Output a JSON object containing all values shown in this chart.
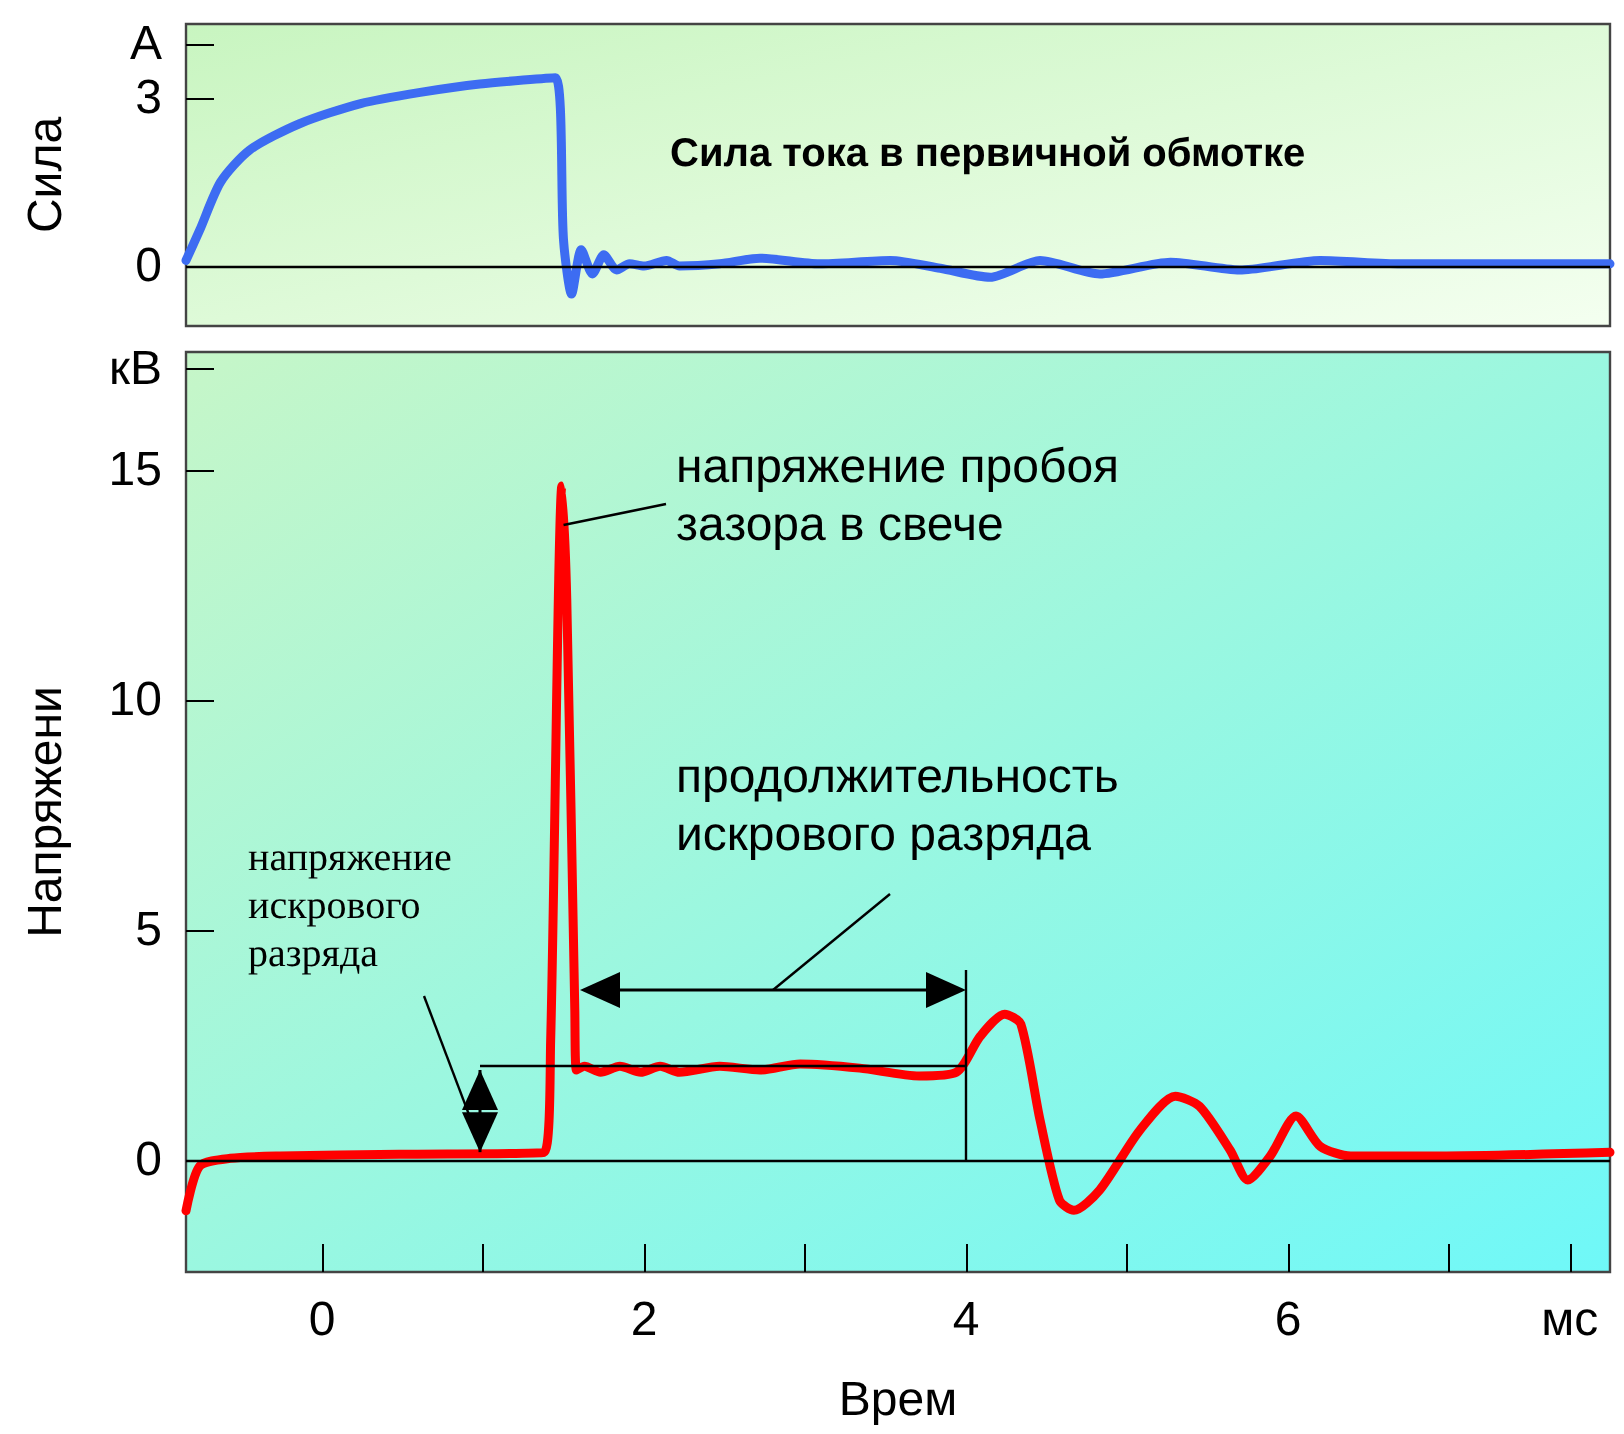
{
  "chart_data": [
    {
      "type": "line",
      "title": "Сила тока в первичной обмотке",
      "ylabel": "Сила",
      "color": "#3d6cf2",
      "marker": "none",
      "x": [
        -0.845,
        -0.76,
        -0.63,
        -0.45,
        -0.14,
        0.24,
        0.61,
        0.98,
        1.45,
        1.5,
        1.55,
        1.61,
        1.68,
        1.75,
        1.83,
        1.91,
        2.0,
        2.14,
        2.22,
        2.47,
        2.72,
        3.09,
        3.53,
        3.84,
        4.15,
        4.46,
        4.83,
        5.27,
        5.7,
        6.2,
        6.7,
        8.0
      ],
      "values": [
        0.1,
        0.64,
        1.5,
        2.07,
        2.54,
        2.9,
        3.1,
        3.25,
        3.36,
        0.46,
        -0.5,
        0.29,
        -0.14,
        0.2,
        -0.07,
        0.04,
        0,
        0.1,
        0,
        0.04,
        0.14,
        0.04,
        0.1,
        -0.04,
        -0.2,
        0.1,
        -0.14,
        0.07,
        -0.07,
        0.1,
        0.04,
        0.04
      ],
      "xlim": [
        -0.845,
        8.0
      ],
      "ylim": [
        -1.07,
        4.32
      ],
      "yticks": [
        0,
        3,
        {
          "value": 3.96,
          "label": "А"
        }
      ],
      "tick_labels": "y",
      "ref_lines": [
        {
          "axis": "y",
          "value": 0,
          "color": "#000000"
        }
      ]
    },
    {
      "type": "line",
      "xlabel": "Врем",
      "ylabel": "Напряжени",
      "color": "#ff0000",
      "marker": "none",
      "x": [
        -0.845,
        -0.76,
        -0.57,
        -0.26,
        0.48,
        1.38,
        1.42,
        1.49,
        1.52,
        1.57,
        1.58,
        1.63,
        1.73,
        1.85,
        1.98,
        2.1,
        2.22,
        2.47,
        2.72,
        2.97,
        3.34,
        3.71,
        3.94,
        4.09,
        4.24,
        4.34,
        4.46,
        4.58,
        4.67,
        4.83,
        5.08,
        5.3,
        5.45,
        5.64,
        5.75,
        5.89,
        6.05,
        6.2,
        6.39,
        6.94,
        8.0
      ],
      "values": [
        -1.1,
        -0.13,
        0.04,
        0.09,
        0.13,
        0.17,
        2.6,
        14.65,
        12.2,
        3.26,
        1.96,
        2.04,
        1.91,
        2.04,
        1.91,
        2.04,
        1.91,
        2.04,
        1.96,
        2.09,
        2.0,
        1.83,
        1.91,
        2.7,
        3.17,
        2.96,
        0.87,
        -0.87,
        -1.09,
        -0.65,
        0.65,
        1.39,
        1.17,
        0.22,
        -0.43,
        0.09,
        0.96,
        0.3,
        0.09,
        0.09,
        0.17
      ],
      "xlim": [
        -0.845,
        8.0
      ],
      "ylim": [
        -2.43,
        17.56
      ],
      "xticks": [
        0,
        {
          "value": 1,
          "label": null
        },
        2,
        {
          "value": 3,
          "label": null
        },
        4,
        {
          "value": 5,
          "label": null
        },
        6,
        {
          "value": 7,
          "label": null
        },
        {
          "value": 7.75,
          "label": "мс"
        }
      ],
      "yticks": [
        0,
        5,
        10,
        15,
        {
          "value": 17.2,
          "label": "кВ"
        }
      ],
      "annotations": [
        {
          "text": "напряжение пробоя зазора в свече",
          "x": 1.5,
          "y": 13.8
        },
        "продолжительность искрового разряда",
        "напряжение искрового разряда"
      ],
      "ref_lines": [
        {
          "axis": "y",
          "value": 0,
          "color": "#000000"
        }
      ]
    }
  ]
}
